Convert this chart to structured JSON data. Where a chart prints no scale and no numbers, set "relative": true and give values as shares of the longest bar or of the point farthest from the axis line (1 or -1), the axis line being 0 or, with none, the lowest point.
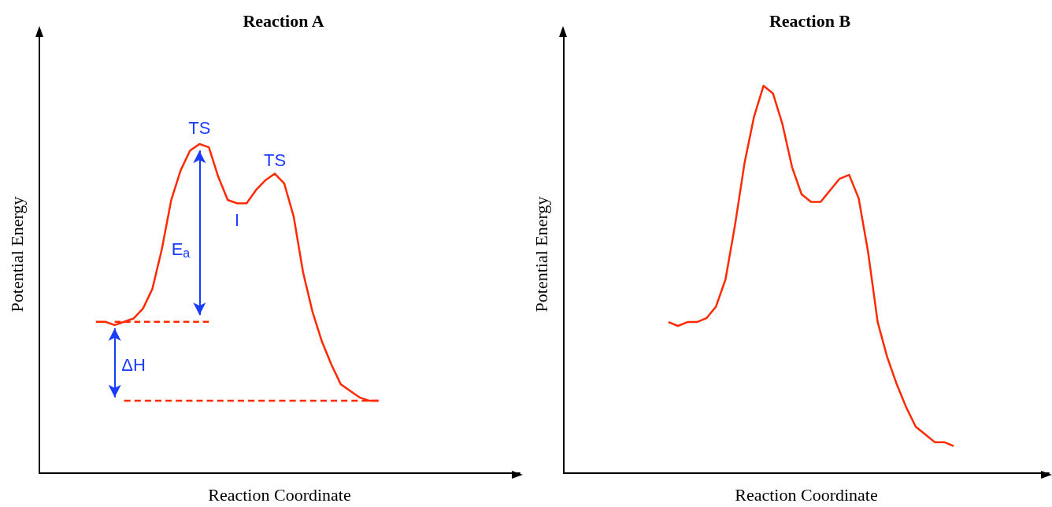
{
  "chart_data": [
    {
      "type": "line",
      "title": "Reaction A",
      "xlabel": "Reaction Coordinate",
      "ylabel": "Potential Energy",
      "relative": true,
      "marker": "none",
      "categories": [
        null,
        null,
        null,
        null,
        null,
        null,
        null,
        null,
        null,
        null,
        null,
        null,
        null,
        null,
        null,
        null,
        null,
        null,
        null,
        null,
        null,
        null,
        null,
        null,
        null,
        null,
        null,
        null,
        null,
        null,
        null,
        null,
        null,
        null,
        null,
        null,
        null,
        null,
        null,
        null,
        null,
        null,
        null,
        null,
        null,
        null,
        null,
        null,
        null,
        null,
        null,
        null
      ],
      "series": [
        {
          "color": "#ff2a00",
          "line_style": "solid",
          "values": [
            null,
            null,
            null,
            null,
            null,
            null,
            0.46,
            0.46,
            0.45,
            0.46,
            0.47,
            0.5,
            0.56,
            0.68,
            0.83,
            0.92,
            0.98,
            1.0,
            0.99,
            0.9,
            0.83,
            0.82,
            0.82,
            0.86,
            0.89,
            0.91,
            0.88,
            0.78,
            0.61,
            0.49,
            0.4,
            0.33,
            0.27,
            0.25,
            0.23,
            0.22,
            0.22,
            null,
            null,
            null,
            null,
            null,
            null,
            null,
            null,
            null,
            null,
            null,
            null,
            null,
            null,
            null
          ]
        },
        {
          "color": "#ff2a00",
          "line_style": "dashed",
          "values": [
            null,
            null,
            null,
            null,
            null,
            null,
            null,
            null,
            0.46,
            0.46,
            0.46,
            0.46,
            0.46,
            0.46,
            0.46,
            0.46,
            0.46,
            0.46,
            0.46,
            null,
            null,
            null,
            null,
            null,
            null,
            null,
            null,
            null,
            null,
            null,
            null,
            null,
            null,
            null,
            null,
            null,
            null,
            null,
            null,
            null,
            null,
            null,
            null,
            null,
            null,
            null,
            null,
            null,
            null,
            null,
            null,
            null
          ]
        },
        {
          "color": "#ff2a00",
          "line_style": "dashed",
          "values": [
            null,
            null,
            null,
            null,
            null,
            null,
            null,
            null,
            null,
            0.22,
            0.22,
            0.22,
            0.22,
            0.22,
            0.22,
            0.22,
            0.22,
            0.22,
            0.22,
            0.22,
            0.22,
            0.22,
            0.22,
            0.22,
            0.22,
            0.22,
            0.22,
            0.22,
            0.22,
            0.22,
            0.22,
            0.22,
            0.22,
            0.22,
            0.22,
            0.22,
            0.22,
            null,
            null,
            null,
            null,
            null,
            null,
            null,
            null,
            null,
            null,
            null,
            null,
            null,
            null,
            null
          ]
        }
      ],
      "annotations": [
        "TS",
        "TS",
        "I",
        "E$_{a}$",
        "ΔH"
      ]
    },
    {
      "type": "line",
      "title": "Reaction B",
      "xlabel": "Reaction Coordinate",
      "ylabel": "Potential Energy",
      "relative": true,
      "marker": "none",
      "categories": [
        null,
        null,
        null,
        null,
        null,
        null,
        null,
        null,
        null,
        null,
        null,
        null,
        null,
        null,
        null,
        null,
        null,
        null,
        null,
        null,
        null,
        null,
        null,
        null,
        null,
        null,
        null,
        null,
        null,
        null,
        null,
        null,
        null,
        null,
        null,
        null,
        null,
        null,
        null,
        null,
        null,
        null,
        null,
        null,
        null,
        null,
        null,
        null,
        null,
        null,
        null,
        null
      ],
      "series": [
        {
          "color": "#ff2a00",
          "line_style": "solid",
          "values": [
            null,
            null,
            null,
            null,
            null,
            null,
            null,
            null,
            null,
            null,
            null,
            0.39,
            0.38,
            0.39,
            0.39,
            0.4,
            0.43,
            0.5,
            0.64,
            0.8,
            0.92,
            1.0,
            0.98,
            0.9,
            0.79,
            0.72,
            0.7,
            0.7,
            0.73,
            0.76,
            0.77,
            0.71,
            0.57,
            0.39,
            0.3,
            0.23,
            0.17,
            0.12,
            0.1,
            0.08,
            0.08,
            0.07,
            null,
            null,
            null,
            null,
            null,
            null,
            null,
            null,
            null,
            null
          ]
        }
      ]
    }
  ]
}
